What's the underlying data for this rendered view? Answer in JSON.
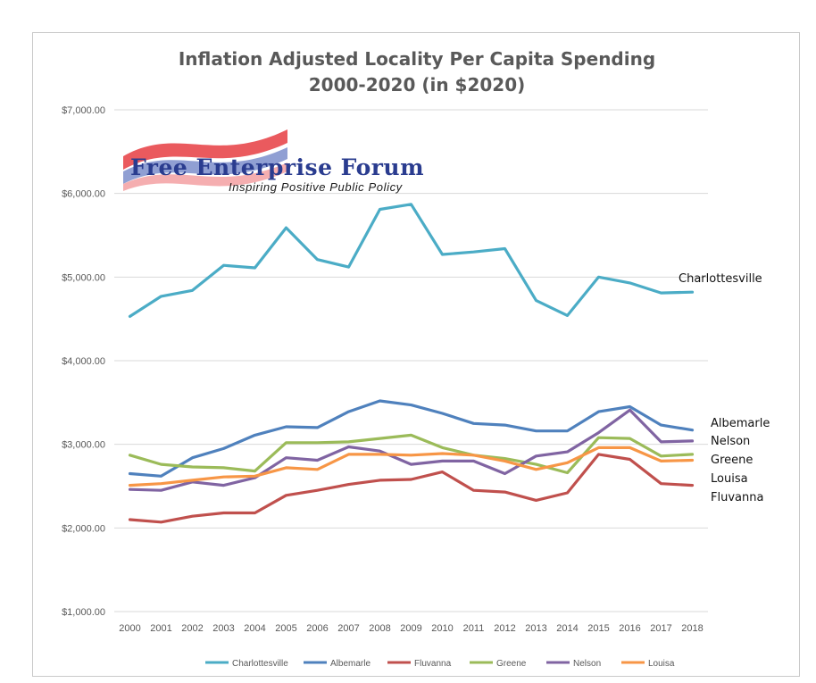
{
  "chart_data": {
    "type": "line",
    "title_lines": [
      "Inflation Adjusted Locality Per Capita Spending",
      "2000-2020 (in $2020)"
    ],
    "x": [
      "2000",
      "2001",
      "2002",
      "2003",
      "2004",
      "2005",
      "2006",
      "2007",
      "2008",
      "2009",
      "2010",
      "2011",
      "2012",
      "2013",
      "2014",
      "2015",
      "2016",
      "2017",
      "2018"
    ],
    "ylim": [
      1000,
      7000
    ],
    "yticks": [
      1000,
      2000,
      3000,
      4000,
      5000,
      6000,
      7000
    ],
    "ytick_labels": [
      "$1,000.00",
      "$2,000.00",
      "$3,000.00",
      "$4,000.00",
      "$5,000.00",
      "$6,000.00",
      "$7,000.00"
    ],
    "grid": true,
    "legend_position": "bottom",
    "series": [
      {
        "name": "Charlottesville",
        "color": "#4bacc6",
        "end_label": "Charlottesville",
        "values": [
          4530,
          4770,
          4840,
          5140,
          5110,
          5590,
          5210,
          5120,
          5810,
          5870,
          5270,
          5300,
          5340,
          4720,
          4540,
          5000,
          4930,
          4810,
          4820
        ]
      },
      {
        "name": "Albemarle",
        "color": "#4f81bd",
        "end_label": "Albemarle",
        "values": [
          2650,
          2620,
          2840,
          2950,
          3110,
          3210,
          3200,
          3390,
          3520,
          3470,
          3370,
          3250,
          3230,
          3160,
          3160,
          3390,
          3450,
          3230,
          3170
        ]
      },
      {
        "name": "Fluvanna",
        "color": "#c0504d",
        "end_label": "Fluvanna",
        "values": [
          2100,
          2070,
          2140,
          2180,
          2180,
          2390,
          2450,
          2520,
          2570,
          2580,
          2670,
          2450,
          2430,
          2330,
          2420,
          2880,
          2820,
          2530,
          2510
        ]
      },
      {
        "name": "Greene",
        "color": "#9bbb59",
        "end_label": "Greene",
        "values": [
          2870,
          2760,
          2730,
          2720,
          2680,
          3020,
          3020,
          3030,
          3070,
          3110,
          2960,
          2870,
          2830,
          2760,
          2660,
          3080,
          3070,
          2860,
          2880
        ]
      },
      {
        "name": "Nelson",
        "color": "#8064a2",
        "end_label": "Nelson",
        "values": [
          2460,
          2450,
          2550,
          2510,
          2600,
          2840,
          2810,
          2970,
          2920,
          2760,
          2800,
          2800,
          2650,
          2860,
          2910,
          3140,
          3410,
          3030,
          3040
        ]
      },
      {
        "name": "Louisa",
        "color": "#f79646",
        "end_label": "Louisa",
        "values": [
          2510,
          2530,
          2570,
          2610,
          2620,
          2720,
          2700,
          2880,
          2880,
          2870,
          2890,
          2870,
          2800,
          2700,
          2780,
          2960,
          2960,
          2800,
          2810
        ]
      }
    ]
  },
  "logo": {
    "main_text": "Free Enterprise Forum",
    "sub_text": "Inspiring Positive Public Policy"
  }
}
